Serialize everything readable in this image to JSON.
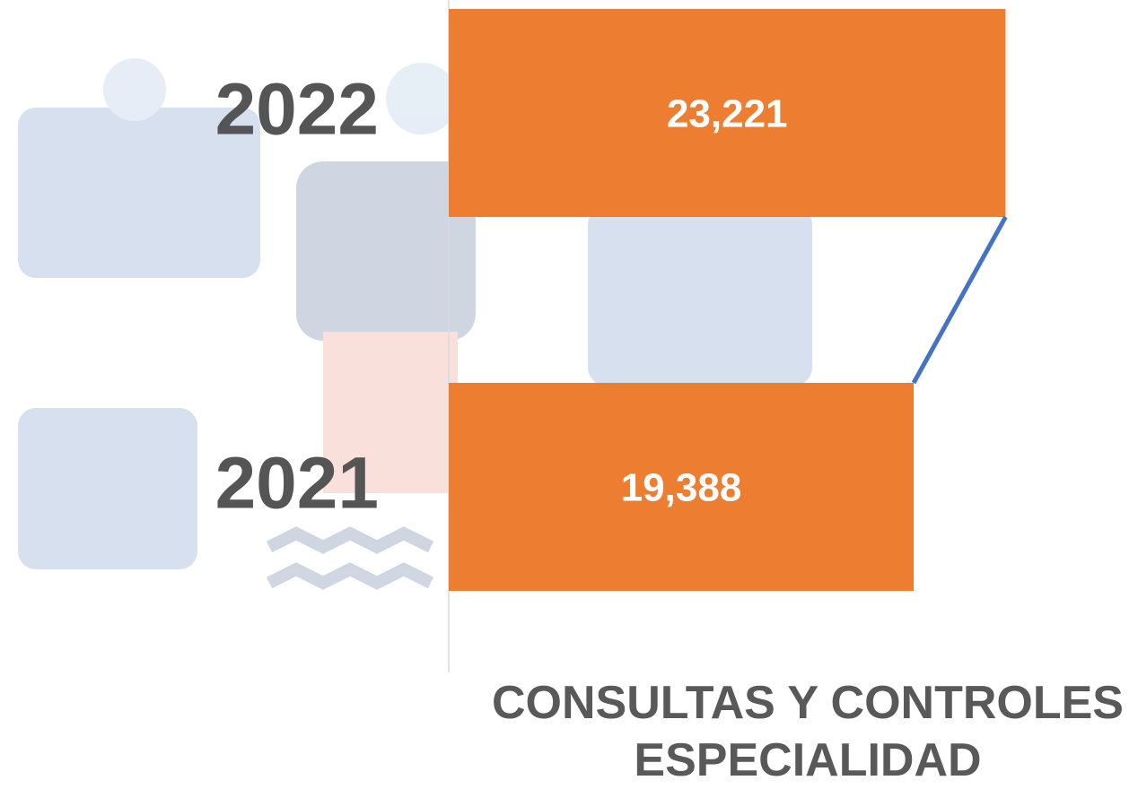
{
  "chart_data": {
    "type": "bar",
    "orientation": "horizontal",
    "title": "CONSULTAS Y CONTROLES ESPECIALIDAD",
    "categories": [
      "2022",
      "2021"
    ],
    "values": [
      23221,
      19388
    ],
    "value_labels": [
      "23,221",
      "19,388"
    ],
    "color": "#ED7D31",
    "series_line_color": "#4472C4",
    "xlim": [
      0,
      25000
    ]
  }
}
